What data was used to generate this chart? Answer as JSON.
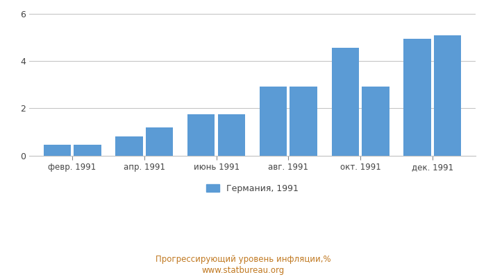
{
  "tick_labels": [
    "февр. 1991",
    "апр. 1991",
    "июнь 1991",
    "авг. 1991",
    "окт. 1991",
    "дек. 1991"
  ],
  "values": [
    0.45,
    0.47,
    0.82,
    1.2,
    1.75,
    1.75,
    2.92,
    2.92,
    4.55,
    2.92,
    4.95,
    5.1
  ],
  "bar_color": "#5b9bd5",
  "ylim": [
    0,
    6
  ],
  "yticks": [
    0,
    2,
    4,
    6
  ],
  "legend_label": "Германия, 1991",
  "footer_line1": "Прогрессирующий уровень инфляции,%",
  "footer_line2": "www.statbureau.org",
  "background_color": "#ffffff",
  "grid_color": "#c0c0c0",
  "footer_color": "#c07820"
}
